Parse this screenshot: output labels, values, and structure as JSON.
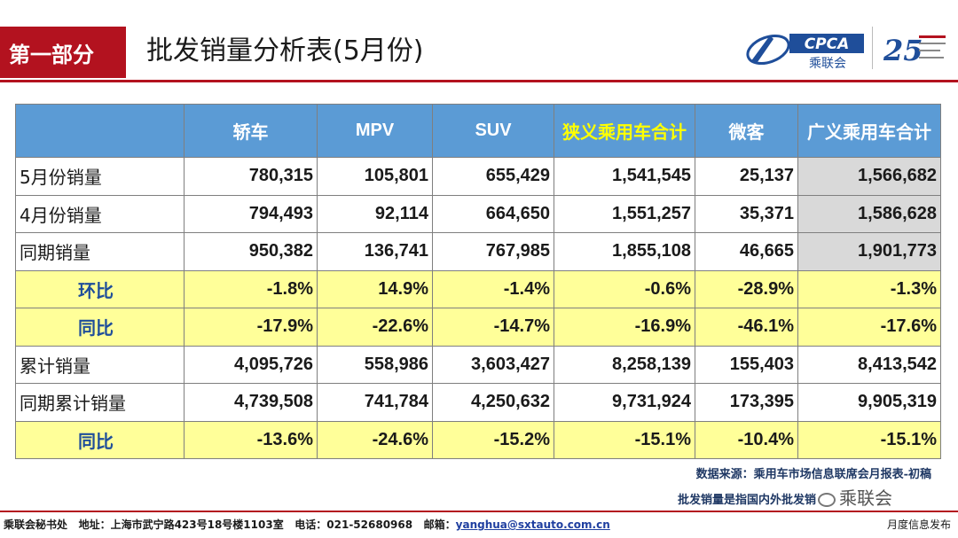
{
  "header": {
    "section": "第一部分",
    "title": "批发销量分析表(5月份)",
    "logo_cpca_text": "CPCA",
    "logo_cpca_sub": "乘联会",
    "logo_25_text": "25"
  },
  "table": {
    "columns": [
      "",
      "轿车",
      "MPV",
      "SUV",
      "狭义乘用车合计",
      "微客",
      "广义乘用车合计"
    ],
    "rows": [
      {
        "label": "5月份销量",
        "values": [
          "780,315",
          "105,801",
          "655,429",
          "1,541,545",
          "25,137",
          "1,566,682"
        ]
      },
      {
        "label": "4月份销量",
        "values": [
          "794,493",
          "92,114",
          "664,650",
          "1,551,257",
          "35,371",
          "1,586,628"
        ]
      },
      {
        "label": "同期销量",
        "values": [
          "950,382",
          "136,741",
          "767,985",
          "1,855,108",
          "46,665",
          "1,901,773"
        ]
      },
      {
        "label": "环比",
        "values": [
          "-1.8%",
          "14.9%",
          "-1.4%",
          "-0.6%",
          "-28.9%",
          "-1.3%"
        ]
      },
      {
        "label": "同比",
        "values": [
          "-17.9%",
          "-22.6%",
          "-14.7%",
          "-16.9%",
          "-46.1%",
          "-17.6%"
        ]
      },
      {
        "label": "累计销量",
        "values": [
          "4,095,726",
          "558,986",
          "3,603,427",
          "8,258,139",
          "155,403",
          "8,413,542"
        ]
      },
      {
        "label": "同期累计销量",
        "values": [
          "4,739,508",
          "741,784",
          "4,250,632",
          "9,731,924",
          "173,395",
          "9,905,319"
        ]
      },
      {
        "label": "同比",
        "values": [
          "-13.6%",
          "-24.6%",
          "-15.2%",
          "-15.1%",
          "-10.4%",
          "-15.1%"
        ]
      }
    ]
  },
  "notes": {
    "source": "数据来源：乘用车市场信息联席会月报表-初稿",
    "definition": "批发销量是指国内外批发销",
    "wechat": "乘联会"
  },
  "footer": {
    "org": "乘联会秘书处",
    "address": "地址：上海市武宁路423号18号楼1103室",
    "phone": "电话：021-52680968",
    "email_label": "邮箱：",
    "email": "yanghua@sxtauto.com.cn",
    "right": "月度信息发布"
  },
  "colors": {
    "brand_red": "#b3121f",
    "header_blue": "#5b9bd5",
    "highlight_yellow": "#ffff99",
    "shade_gray": "#d9d9d9"
  }
}
